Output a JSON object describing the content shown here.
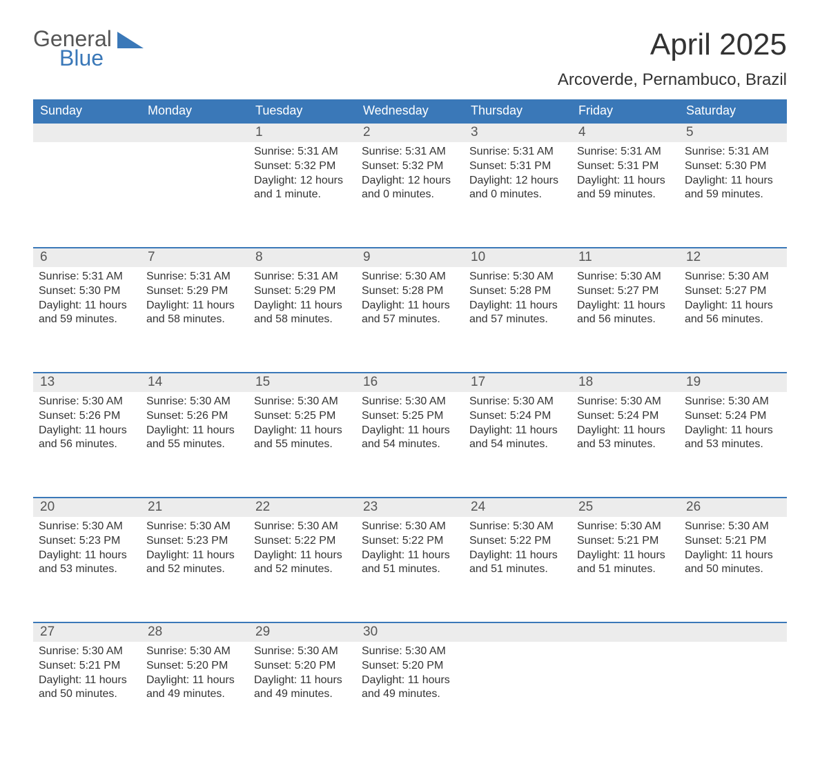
{
  "logo": {
    "general": "General",
    "blue": "Blue",
    "shape_color": "#3a78b8"
  },
  "title": "April 2025",
  "location": "Arcoverde, Pernambuco, Brazil",
  "colors": {
    "header_bg": "#3a78b8",
    "header_text": "#ffffff",
    "daynum_bg": "#ececec",
    "text": "#333333",
    "week_border": "#3a78b8"
  },
  "weekdays": [
    "Sunday",
    "Monday",
    "Tuesday",
    "Wednesday",
    "Thursday",
    "Friday",
    "Saturday"
  ],
  "weeks": [
    [
      {
        "n": "",
        "sunrise": "",
        "sunset": "",
        "daylight": ""
      },
      {
        "n": "",
        "sunrise": "",
        "sunset": "",
        "daylight": ""
      },
      {
        "n": "1",
        "sunrise": "Sunrise: 5:31 AM",
        "sunset": "Sunset: 5:32 PM",
        "daylight": "Daylight: 12 hours and 1 minute."
      },
      {
        "n": "2",
        "sunrise": "Sunrise: 5:31 AM",
        "sunset": "Sunset: 5:32 PM",
        "daylight": "Daylight: 12 hours and 0 minutes."
      },
      {
        "n": "3",
        "sunrise": "Sunrise: 5:31 AM",
        "sunset": "Sunset: 5:31 PM",
        "daylight": "Daylight: 12 hours and 0 minutes."
      },
      {
        "n": "4",
        "sunrise": "Sunrise: 5:31 AM",
        "sunset": "Sunset: 5:31 PM",
        "daylight": "Daylight: 11 hours and 59 minutes."
      },
      {
        "n": "5",
        "sunrise": "Sunrise: 5:31 AM",
        "sunset": "Sunset: 5:30 PM",
        "daylight": "Daylight: 11 hours and 59 minutes."
      }
    ],
    [
      {
        "n": "6",
        "sunrise": "Sunrise: 5:31 AM",
        "sunset": "Sunset: 5:30 PM",
        "daylight": "Daylight: 11 hours and 59 minutes."
      },
      {
        "n": "7",
        "sunrise": "Sunrise: 5:31 AM",
        "sunset": "Sunset: 5:29 PM",
        "daylight": "Daylight: 11 hours and 58 minutes."
      },
      {
        "n": "8",
        "sunrise": "Sunrise: 5:31 AM",
        "sunset": "Sunset: 5:29 PM",
        "daylight": "Daylight: 11 hours and 58 minutes."
      },
      {
        "n": "9",
        "sunrise": "Sunrise: 5:30 AM",
        "sunset": "Sunset: 5:28 PM",
        "daylight": "Daylight: 11 hours and 57 minutes."
      },
      {
        "n": "10",
        "sunrise": "Sunrise: 5:30 AM",
        "sunset": "Sunset: 5:28 PM",
        "daylight": "Daylight: 11 hours and 57 minutes."
      },
      {
        "n": "11",
        "sunrise": "Sunrise: 5:30 AM",
        "sunset": "Sunset: 5:27 PM",
        "daylight": "Daylight: 11 hours and 56 minutes."
      },
      {
        "n": "12",
        "sunrise": "Sunrise: 5:30 AM",
        "sunset": "Sunset: 5:27 PM",
        "daylight": "Daylight: 11 hours and 56 minutes."
      }
    ],
    [
      {
        "n": "13",
        "sunrise": "Sunrise: 5:30 AM",
        "sunset": "Sunset: 5:26 PM",
        "daylight": "Daylight: 11 hours and 56 minutes."
      },
      {
        "n": "14",
        "sunrise": "Sunrise: 5:30 AM",
        "sunset": "Sunset: 5:26 PM",
        "daylight": "Daylight: 11 hours and 55 minutes."
      },
      {
        "n": "15",
        "sunrise": "Sunrise: 5:30 AM",
        "sunset": "Sunset: 5:25 PM",
        "daylight": "Daylight: 11 hours and 55 minutes."
      },
      {
        "n": "16",
        "sunrise": "Sunrise: 5:30 AM",
        "sunset": "Sunset: 5:25 PM",
        "daylight": "Daylight: 11 hours and 54 minutes."
      },
      {
        "n": "17",
        "sunrise": "Sunrise: 5:30 AM",
        "sunset": "Sunset: 5:24 PM",
        "daylight": "Daylight: 11 hours and 54 minutes."
      },
      {
        "n": "18",
        "sunrise": "Sunrise: 5:30 AM",
        "sunset": "Sunset: 5:24 PM",
        "daylight": "Daylight: 11 hours and 53 minutes."
      },
      {
        "n": "19",
        "sunrise": "Sunrise: 5:30 AM",
        "sunset": "Sunset: 5:24 PM",
        "daylight": "Daylight: 11 hours and 53 minutes."
      }
    ],
    [
      {
        "n": "20",
        "sunrise": "Sunrise: 5:30 AM",
        "sunset": "Sunset: 5:23 PM",
        "daylight": "Daylight: 11 hours and 53 minutes."
      },
      {
        "n": "21",
        "sunrise": "Sunrise: 5:30 AM",
        "sunset": "Sunset: 5:23 PM",
        "daylight": "Daylight: 11 hours and 52 minutes."
      },
      {
        "n": "22",
        "sunrise": "Sunrise: 5:30 AM",
        "sunset": "Sunset: 5:22 PM",
        "daylight": "Daylight: 11 hours and 52 minutes."
      },
      {
        "n": "23",
        "sunrise": "Sunrise: 5:30 AM",
        "sunset": "Sunset: 5:22 PM",
        "daylight": "Daylight: 11 hours and 51 minutes."
      },
      {
        "n": "24",
        "sunrise": "Sunrise: 5:30 AM",
        "sunset": "Sunset: 5:22 PM",
        "daylight": "Daylight: 11 hours and 51 minutes."
      },
      {
        "n": "25",
        "sunrise": "Sunrise: 5:30 AM",
        "sunset": "Sunset: 5:21 PM",
        "daylight": "Daylight: 11 hours and 51 minutes."
      },
      {
        "n": "26",
        "sunrise": "Sunrise: 5:30 AM",
        "sunset": "Sunset: 5:21 PM",
        "daylight": "Daylight: 11 hours and 50 minutes."
      }
    ],
    [
      {
        "n": "27",
        "sunrise": "Sunrise: 5:30 AM",
        "sunset": "Sunset: 5:21 PM",
        "daylight": "Daylight: 11 hours and 50 minutes."
      },
      {
        "n": "28",
        "sunrise": "Sunrise: 5:30 AM",
        "sunset": "Sunset: 5:20 PM",
        "daylight": "Daylight: 11 hours and 49 minutes."
      },
      {
        "n": "29",
        "sunrise": "Sunrise: 5:30 AM",
        "sunset": "Sunset: 5:20 PM",
        "daylight": "Daylight: 11 hours and 49 minutes."
      },
      {
        "n": "30",
        "sunrise": "Sunrise: 5:30 AM",
        "sunset": "Sunset: 5:20 PM",
        "daylight": "Daylight: 11 hours and 49 minutes."
      },
      {
        "n": "",
        "sunrise": "",
        "sunset": "",
        "daylight": ""
      },
      {
        "n": "",
        "sunrise": "",
        "sunset": "",
        "daylight": ""
      },
      {
        "n": "",
        "sunrise": "",
        "sunset": "",
        "daylight": ""
      }
    ]
  ]
}
